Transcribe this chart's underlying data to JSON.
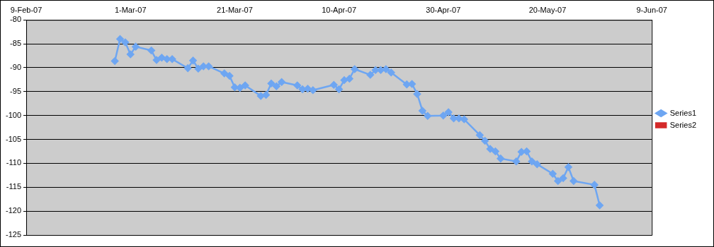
{
  "chart_data": {
    "type": "line",
    "x": [
      "2007-02-26",
      "2007-02-27",
      "2007-02-28",
      "2007-03-01",
      "2007-03-02",
      "2007-03-05",
      "2007-03-06",
      "2007-03-07",
      "2007-03-08",
      "2007-03-09",
      "2007-03-12",
      "2007-03-13",
      "2007-03-14",
      "2007-03-15",
      "2007-03-16",
      "2007-03-19",
      "2007-03-20",
      "2007-03-21",
      "2007-03-22",
      "2007-03-23",
      "2007-03-26",
      "2007-03-27",
      "2007-03-28",
      "2007-03-29",
      "2007-03-30",
      "2007-04-02",
      "2007-04-03",
      "2007-04-04",
      "2007-04-05",
      "2007-04-09",
      "2007-04-10",
      "2007-04-11",
      "2007-04-12",
      "2007-04-13",
      "2007-04-16",
      "2007-04-17",
      "2007-04-18",
      "2007-04-19",
      "2007-04-20",
      "2007-04-23",
      "2007-04-24",
      "2007-04-25",
      "2007-04-26",
      "2007-04-27",
      "2007-04-30",
      "2007-05-01",
      "2007-05-02",
      "2007-05-03",
      "2007-05-04",
      "2007-05-07",
      "2007-05-08",
      "2007-05-09",
      "2007-05-10",
      "2007-05-11",
      "2007-05-14",
      "2007-05-15",
      "2007-05-16",
      "2007-05-17",
      "2007-05-18",
      "2007-05-21",
      "2007-05-22",
      "2007-05-23",
      "2007-05-24",
      "2007-05-25",
      "2007-05-29",
      "2007-05-30"
    ],
    "series": [
      {
        "name": "Series1",
        "color": "#6ea6f2",
        "marker": "diamond",
        "values": [
          -88.6,
          -84.0,
          -84.7,
          -87.2,
          -85.6,
          -86.4,
          -88.4,
          -87.9,
          -88.2,
          -88.2,
          -90.1,
          -88.5,
          -90.2,
          -89.7,
          -89.7,
          -91.2,
          -91.7,
          -94.1,
          -94.2,
          -93.7,
          -95.9,
          -95.7,
          -93.3,
          -93.9,
          -93.0,
          -93.7,
          -94.5,
          -94.4,
          -94.7,
          -93.6,
          -94.5,
          -92.6,
          -92.3,
          -90.3,
          -91.5,
          -90.5,
          -90.5,
          -90.3,
          -91.0,
          -93.5,
          -93.4,
          -95.5,
          -99.0,
          -100.1,
          -100.0,
          -99.3,
          -100.6,
          -100.6,
          -100.8,
          -104.1,
          -105.3,
          -107.0,
          -107.5,
          -109.0,
          -109.6,
          -107.6,
          -107.5,
          -109.6,
          -110.2,
          -112.2,
          -113.7,
          -113.1,
          -110.8,
          -113.7,
          -114.5,
          -118.8
        ]
      },
      {
        "name": "Series2",
        "color": "#d42a2a",
        "marker": "square",
        "values": [
          null,
          null,
          null,
          null,
          null,
          null,
          null,
          null,
          null,
          null,
          null,
          null,
          null,
          null,
          null,
          null,
          null,
          null,
          null,
          null,
          null,
          null,
          null,
          null,
          null,
          null,
          null,
          null,
          null,
          null,
          null,
          null,
          null,
          null,
          null,
          null,
          null,
          null,
          null,
          null,
          null,
          null,
          null,
          null,
          null,
          null,
          null,
          null,
          null,
          null,
          null,
          null,
          null,
          null,
          null,
          null,
          null,
          null,
          null,
          null,
          null,
          null,
          null,
          null,
          null,
          null
        ]
      }
    ],
    "xlim": [
      "2007-02-09",
      "2007-06-09"
    ],
    "xticks": [
      {
        "value": "2007-02-09",
        "label": "9-Feb-07"
      },
      {
        "value": "2007-03-01",
        "label": "1-Mar-07"
      },
      {
        "value": "2007-03-21",
        "label": "21-Mar-07"
      },
      {
        "value": "2007-04-10",
        "label": "10-Apr-07"
      },
      {
        "value": "2007-04-30",
        "label": "30-Apr-07"
      },
      {
        "value": "2007-05-20",
        "label": "20-May-07"
      },
      {
        "value": "2007-06-09",
        "label": "9-Jun-07"
      }
    ],
    "ylim": [
      -125,
      -80
    ],
    "yticks": [
      -125,
      -120,
      -115,
      -110,
      -105,
      -100,
      -95,
      -90,
      -85,
      -80
    ],
    "grid": "y",
    "legend": "right"
  }
}
